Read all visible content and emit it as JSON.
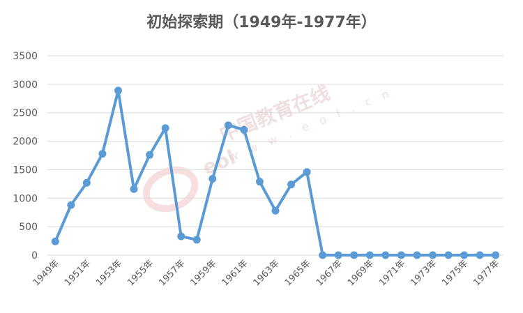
{
  "chart_data": {
    "type": "line",
    "title": "初始探索期（1949年-1977年）",
    "xlabel": "",
    "ylabel": "",
    "x": [
      "1949年",
      "1950年",
      "1951年",
      "1952年",
      "1953年",
      "1954年",
      "1955年",
      "1956年",
      "1957年",
      "1958年",
      "1959年",
      "1960年",
      "1961年",
      "1962年",
      "1963年",
      "1964年",
      "1965年",
      "1966年",
      "1967年",
      "1968年",
      "1969年",
      "1970年",
      "1971年",
      "1972年",
      "1973年",
      "1974年",
      "1975年",
      "1976年",
      "1977年"
    ],
    "x_tick_labels_shown": [
      "1949年",
      "1951年",
      "1953年",
      "1955年",
      "1957年",
      "1959年",
      "1961年",
      "1963年",
      "1965年",
      "1967年",
      "1969年",
      "1971年",
      "1973年",
      "1975年",
      "1977年"
    ],
    "series": [
      {
        "values": [
          240,
          880,
          1270,
          1780,
          2890,
          1160,
          1760,
          2230,
          330,
          270,
          1340,
          2280,
          2200,
          1290,
          780,
          1240,
          1460,
          0,
          0,
          0,
          0,
          0,
          0,
          0,
          0,
          0,
          0,
          0,
          0
        ]
      }
    ],
    "ylim": [
      0,
      3500
    ],
    "yticks": [
      "0",
      "500",
      "1000",
      "1500",
      "2000",
      "2500",
      "3000",
      "3500"
    ],
    "grid": true,
    "legend": "none",
    "colors": {
      "line": "#5b9bd5",
      "grid": "#d9d9d9",
      "text": "#595959"
    }
  },
  "watermark": {
    "logo": "eol",
    "brand": "中国教育在线",
    "url": "w w w . e o l . c n"
  }
}
